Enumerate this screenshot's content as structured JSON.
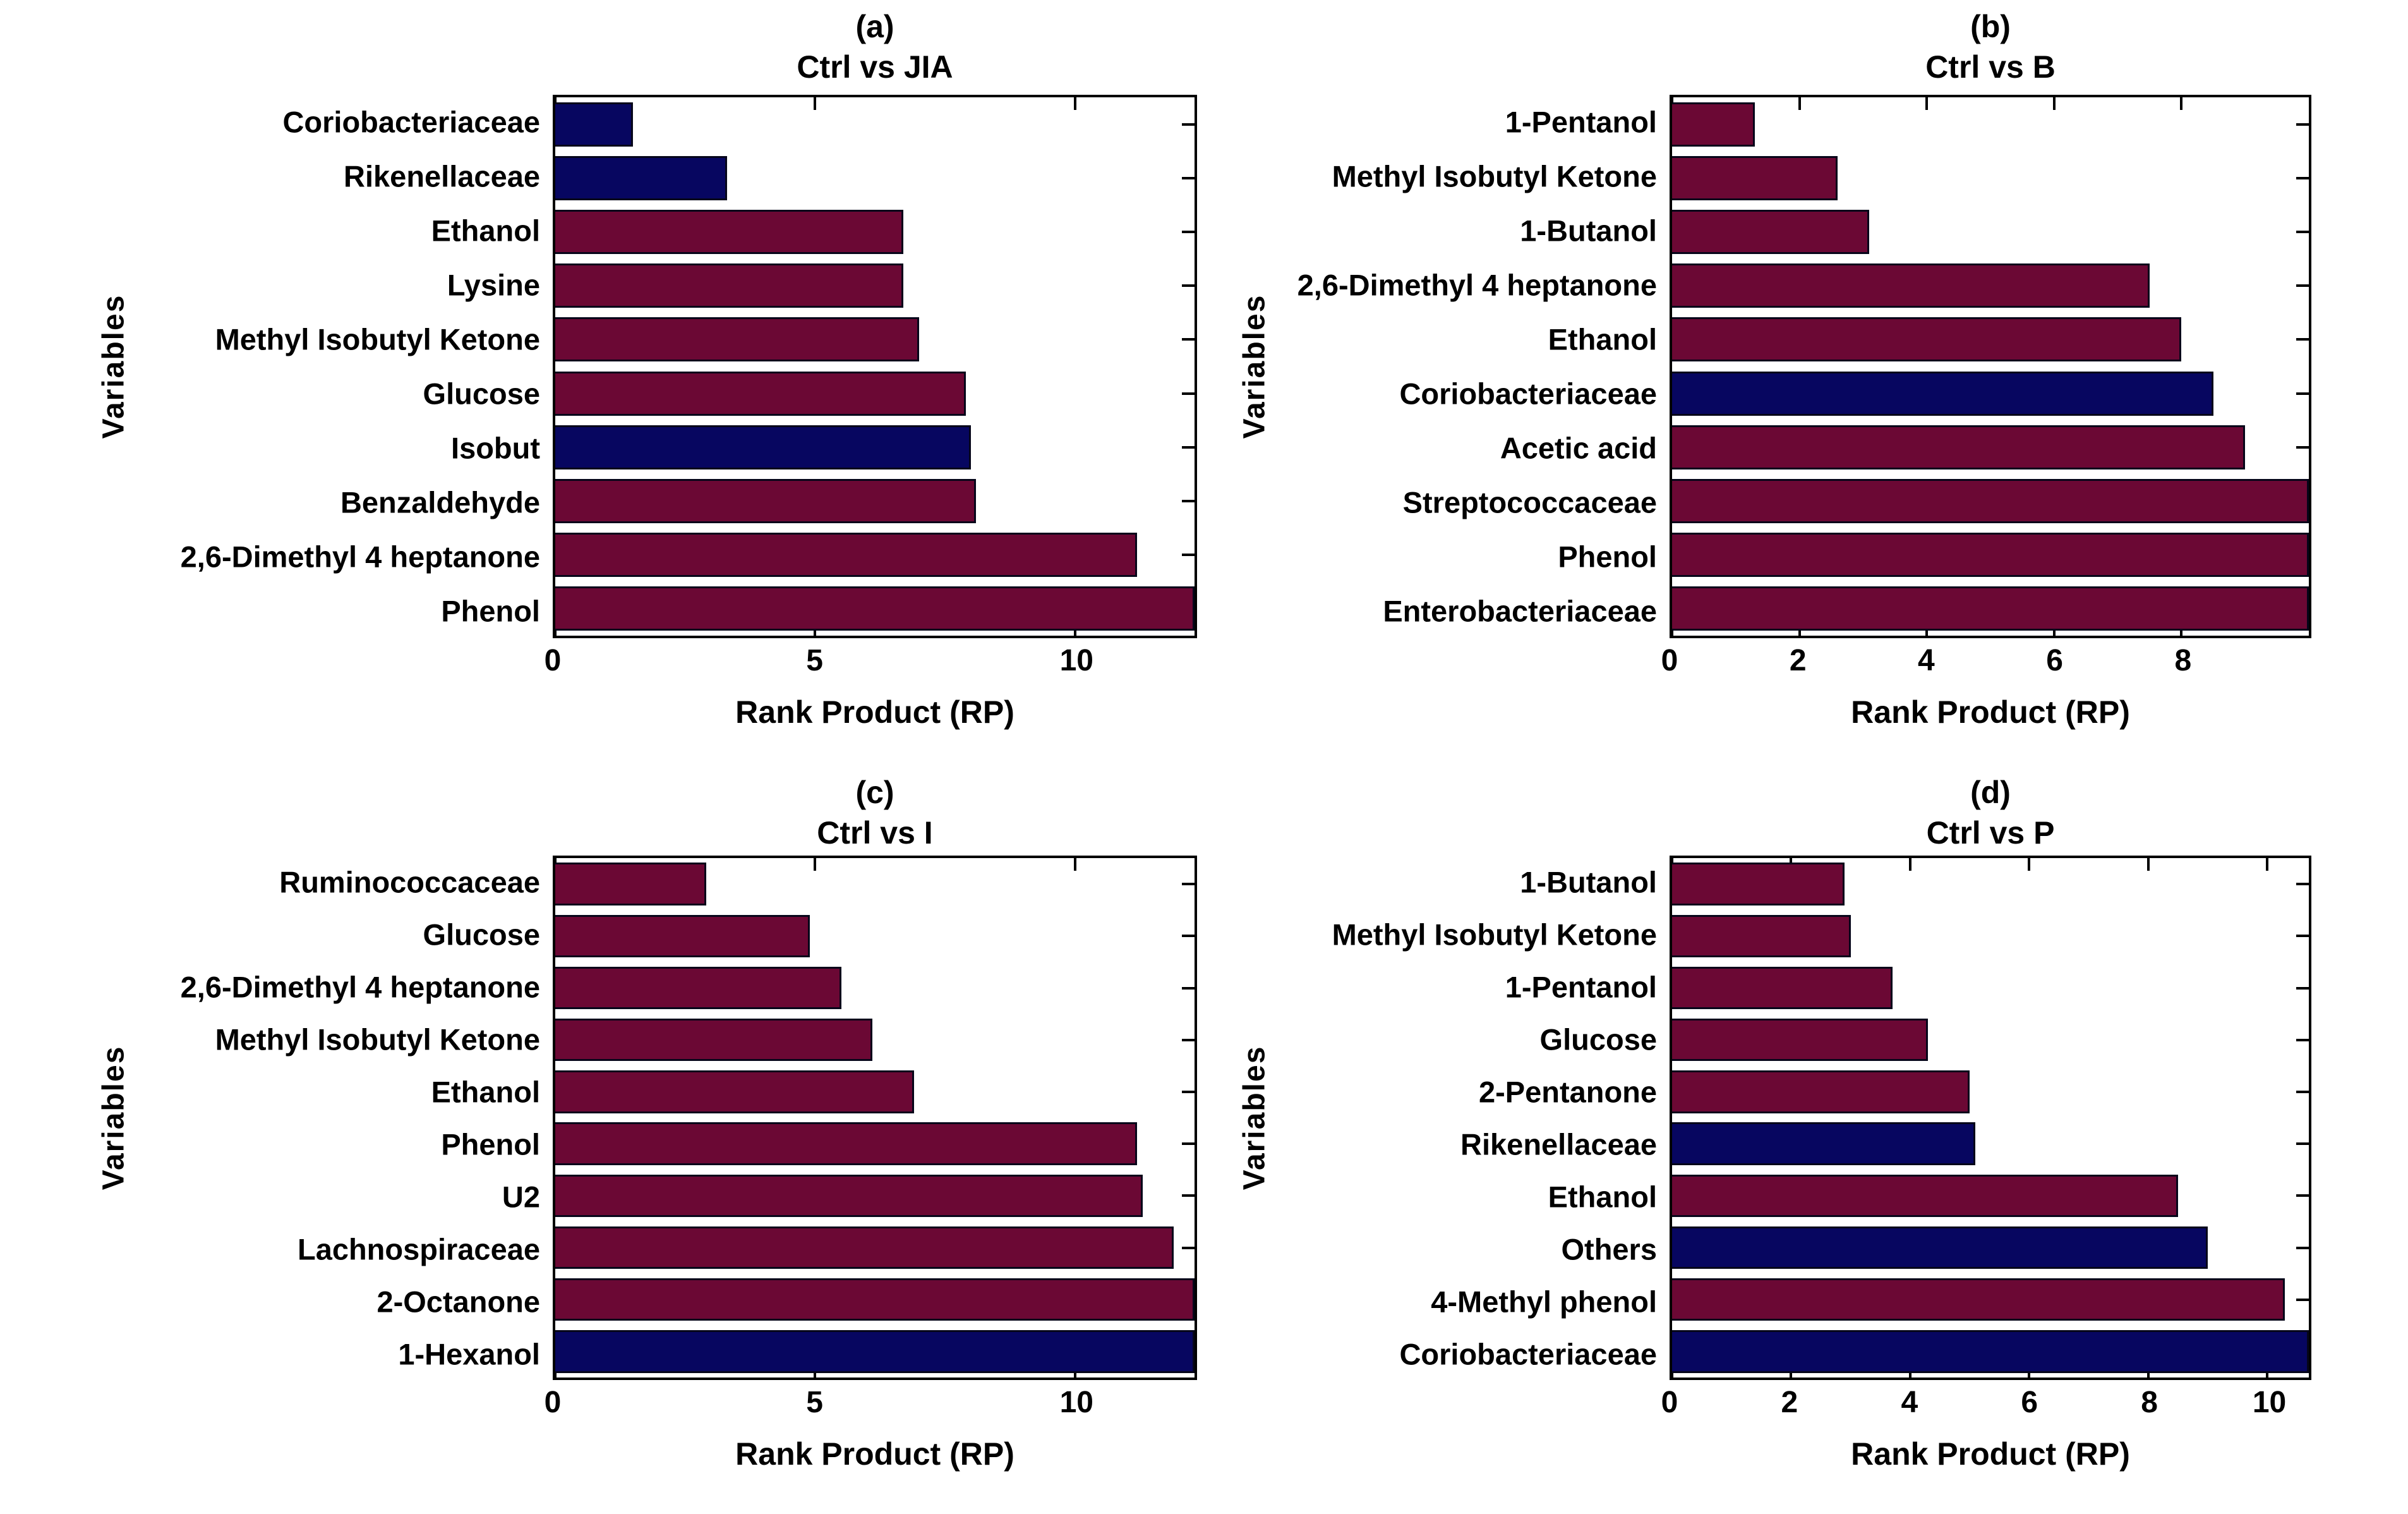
{
  "figure": {
    "background": "#ffffff",
    "axis_color": "#000000",
    "bar_edge_color": "#06061a",
    "bar_palette": {
      "maroon": "#6B0834",
      "navy": "#070660"
    }
  },
  "chart_data": [
    {
      "type": "bar",
      "orientation": "horizontal",
      "panel_letter": "(a)",
      "title": "Ctrl vs JIA",
      "xlabel": "Rank Product (RP)",
      "ylabel": "Variables",
      "xlim": [
        0,
        12.3
      ],
      "xticks": [
        0,
        5,
        10
      ],
      "grid": false,
      "categories": [
        "Coriobacteriaceae",
        "Rikenellaceae",
        "Ethanol",
        "Lysine",
        "Methyl Isobutyl Ketone",
        "Glucose",
        "Isobut",
        "Benzaldehyde",
        "2,6-Dimethyl 4 heptanone",
        "Phenol"
      ],
      "values": [
        1.5,
        3.3,
        6.7,
        6.7,
        7.0,
        7.9,
        8.0,
        8.1,
        11.2,
        12.3
      ],
      "bar_colors": [
        "navy",
        "navy",
        "maroon",
        "maroon",
        "maroon",
        "maroon",
        "navy",
        "maroon",
        "maroon",
        "maroon"
      ]
    },
    {
      "type": "bar",
      "orientation": "horizontal",
      "panel_letter": "(b)",
      "title": "Ctrl vs B",
      "xlabel": "Rank Product (RP)",
      "ylabel": "Variables",
      "xlim": [
        0,
        10
      ],
      "xticks": [
        0,
        2,
        4,
        6,
        8
      ],
      "grid": false,
      "categories": [
        "1-Pentanol",
        "Methyl Isobutyl Ketone",
        "1-Butanol",
        "2,6-Dimethyl 4 heptanone",
        "Ethanol",
        "Coriobacteriaceae",
        "Acetic acid",
        "Streptococcaceae",
        "Phenol",
        "Enterobacteriaceae"
      ],
      "values": [
        1.3,
        2.6,
        3.1,
        7.5,
        8.0,
        8.5,
        9.0,
        10,
        10,
        10
      ],
      "bar_colors": [
        "maroon",
        "maroon",
        "maroon",
        "maroon",
        "maroon",
        "navy",
        "maroon",
        "maroon",
        "maroon",
        "maroon"
      ]
    },
    {
      "type": "bar",
      "orientation": "horizontal",
      "panel_letter": "(c)",
      "title": "Ctrl vs I",
      "xlabel": "Rank Product (RP)",
      "ylabel": "Variables",
      "xlim": [
        0,
        12.3
      ],
      "xticks": [
        0,
        5,
        10
      ],
      "grid": false,
      "categories": [
        "Ruminococcaceae",
        "Glucose",
        "2,6-Dimethyl 4 heptanone",
        "Methyl Isobutyl Ketone",
        "Ethanol",
        "Phenol",
        "U2",
        "Lachnospiraceae",
        "2-Octanone",
        "1-Hexanol"
      ],
      "values": [
        2.9,
        4.9,
        5.5,
        6.1,
        6.9,
        11.2,
        11.3,
        11.9,
        12.3,
        12.3
      ],
      "bar_colors": [
        "maroon",
        "maroon",
        "maroon",
        "maroon",
        "maroon",
        "maroon",
        "maroon",
        "maroon",
        "maroon",
        "navy"
      ]
    },
    {
      "type": "bar",
      "orientation": "horizontal",
      "panel_letter": "(d)",
      "title": "Ctrl vs P",
      "xlabel": "Rank Product (RP)",
      "ylabel": "Variables",
      "xlim": [
        0,
        10.7
      ],
      "xticks": [
        0,
        2,
        4,
        6,
        8,
        10
      ],
      "grid": false,
      "categories": [
        "1-Butanol",
        "Methyl Isobutyl Ketone",
        "1-Pentanol",
        "Glucose",
        "2-Pentanone",
        "Rikenellaceae",
        "Ethanol",
        "Others",
        "4-Methyl phenol",
        "Coriobacteriaceae"
      ],
      "values": [
        2.9,
        3.0,
        3.7,
        4.3,
        5.0,
        5.1,
        8.5,
        9.0,
        10.3,
        10.7
      ],
      "bar_colors": [
        "maroon",
        "maroon",
        "maroon",
        "maroon",
        "maroon",
        "navy",
        "maroon",
        "navy",
        "maroon",
        "navy"
      ]
    }
  ]
}
